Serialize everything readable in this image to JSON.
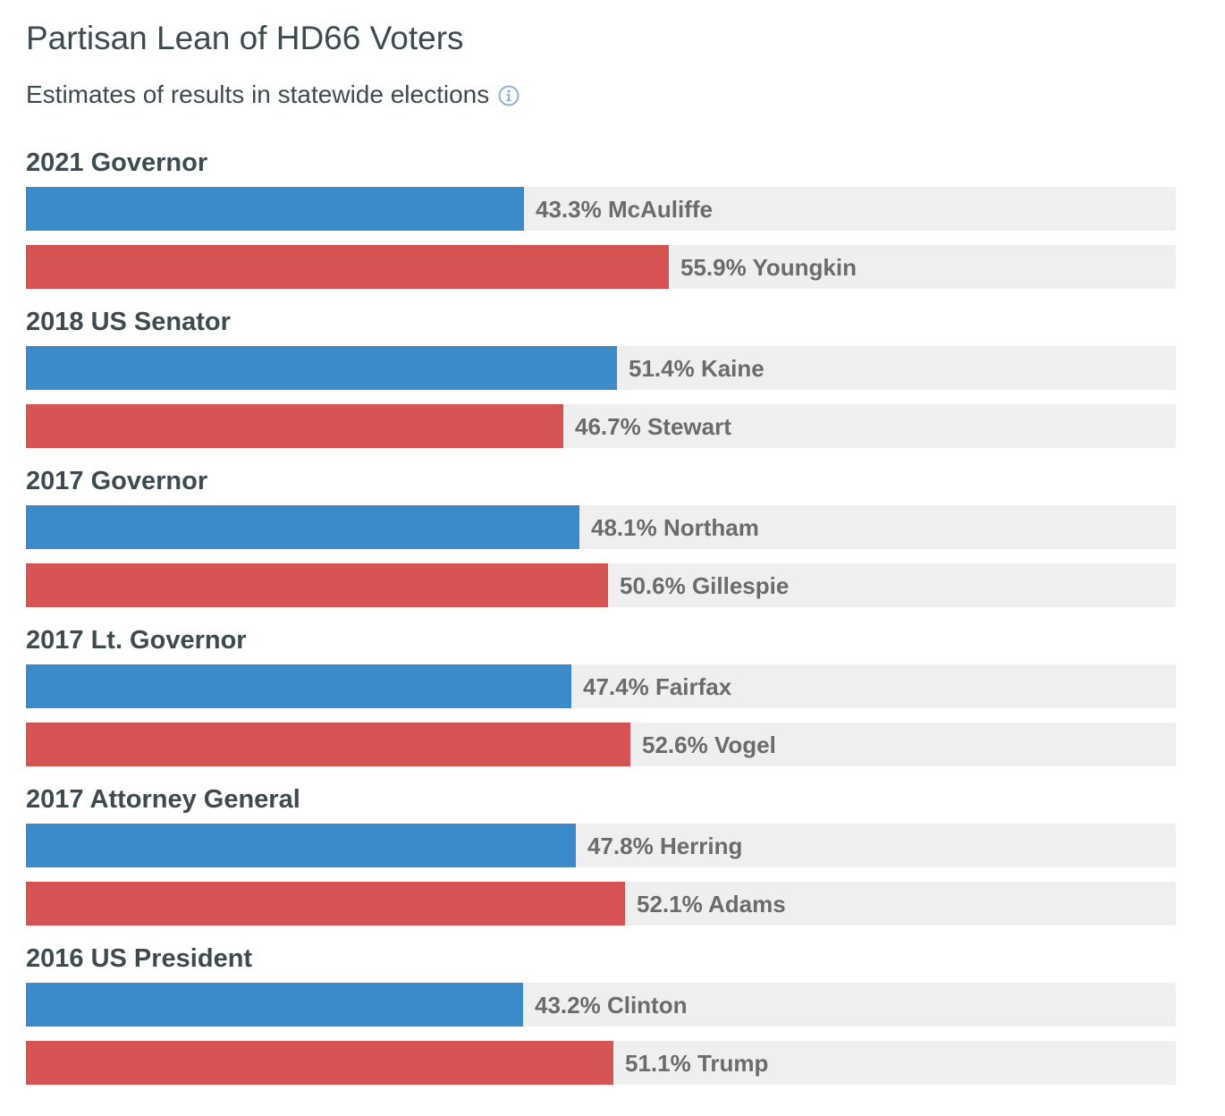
{
  "title": "Partisan Lean of HD66 Voters",
  "subtitle": "Estimates of results in statewide elections",
  "colors": {
    "dem": "#3b8ac9",
    "rep": "#d65354",
    "track": "#efefef"
  },
  "icons": {
    "info": "info-circle-icon"
  },
  "chart_data": {
    "type": "bar",
    "orientation": "horizontal",
    "xlim": [
      0,
      100
    ],
    "races": [
      {
        "title": "2021 Governor",
        "bars": [
          {
            "party": "dem",
            "value": 43.3,
            "candidate": "McAuliffe",
            "label": "43.3% McAuliffe"
          },
          {
            "party": "rep",
            "value": 55.9,
            "candidate": "Youngkin",
            "label": "55.9% Youngkin"
          }
        ]
      },
      {
        "title": "2018 US Senator",
        "bars": [
          {
            "party": "dem",
            "value": 51.4,
            "candidate": "Kaine",
            "label": "51.4% Kaine"
          },
          {
            "party": "rep",
            "value": 46.7,
            "candidate": "Stewart",
            "label": "46.7% Stewart"
          }
        ]
      },
      {
        "title": "2017 Governor",
        "bars": [
          {
            "party": "dem",
            "value": 48.1,
            "candidate": "Northam",
            "label": "48.1% Northam"
          },
          {
            "party": "rep",
            "value": 50.6,
            "candidate": "Gillespie",
            "label": "50.6% Gillespie"
          }
        ]
      },
      {
        "title": "2017 Lt. Governor",
        "bars": [
          {
            "party": "dem",
            "value": 47.4,
            "candidate": "Fairfax",
            "label": "47.4% Fairfax"
          },
          {
            "party": "rep",
            "value": 52.6,
            "candidate": "Vogel",
            "label": "52.6% Vogel"
          }
        ]
      },
      {
        "title": "2017 Attorney General",
        "bars": [
          {
            "party": "dem",
            "value": 47.8,
            "candidate": "Herring",
            "label": "47.8% Herring"
          },
          {
            "party": "rep",
            "value": 52.1,
            "candidate": "Adams",
            "label": "52.1% Adams"
          }
        ]
      },
      {
        "title": "2016 US President",
        "bars": [
          {
            "party": "dem",
            "value": 43.2,
            "candidate": "Clinton",
            "label": "43.2% Clinton"
          },
          {
            "party": "rep",
            "value": 51.1,
            "candidate": "Trump",
            "label": "51.1% Trump"
          }
        ]
      }
    ]
  }
}
